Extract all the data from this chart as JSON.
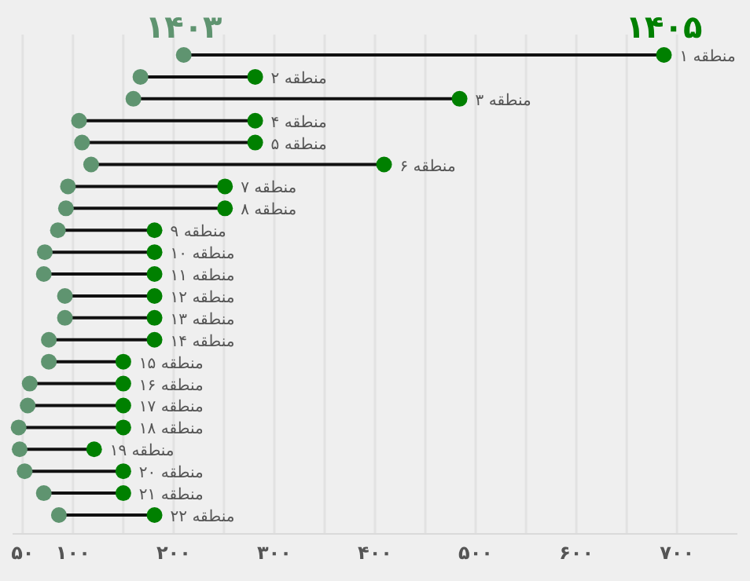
{
  "chart_data": {
    "type": "scatter",
    "orientation": "horizontal",
    "categories": [
      "منطقه ۱",
      "منطقه ۲",
      "منطقه ۳",
      "منطقه ۴",
      "منطقه ۵",
      "منطقه ۶",
      "منطقه ۷",
      "منطقه ۸",
      "منطقه ۹",
      "منطقه ۱۰",
      "منطقه ۱۱",
      "منطقه ۱۲",
      "منطقه ۱۳",
      "منطقه ۱۴",
      "منطقه ۱۵",
      "منطقه ۱۶",
      "منطقه ۱۷",
      "منطقه ۱۸",
      "منطقه ۱۹",
      "منطقه ۲۰",
      "منطقه ۲۱",
      "منطقه ۲۲"
    ],
    "series": [
      {
        "name": "۱۴۰۳",
        "color": "#5f9470",
        "values": [
          210,
          167,
          160,
          106,
          109,
          118,
          95,
          93,
          85,
          72,
          71,
          92,
          92,
          76,
          76,
          57,
          55,
          46,
          47,
          52,
          71,
          86
        ]
      },
      {
        "name": "۱۴۰۵",
        "color": "#008000",
        "values": [
          687,
          281,
          484,
          281,
          281,
          409,
          251,
          251,
          181,
          181,
          181,
          181,
          181,
          181,
          150,
          150,
          150,
          150,
          121,
          150,
          150,
          181
        ]
      }
    ],
    "xlim": [
      40,
      760
    ],
    "xticks": [
      {
        "value": 50,
        "label": "۵۰"
      },
      {
        "value": 100,
        "label": "۱۰۰"
      },
      {
        "value": 150,
        "label": null
      },
      {
        "value": 200,
        "label": "۲۰۰"
      },
      {
        "value": 250,
        "label": null
      },
      {
        "value": 300,
        "label": "۳۰۰"
      },
      {
        "value": 350,
        "label": null
      },
      {
        "value": 400,
        "label": "۴۰۰"
      },
      {
        "value": 450,
        "label": null
      },
      {
        "value": 500,
        "label": "۵۰۰"
      },
      {
        "value": 550,
        "label": null
      },
      {
        "value": 600,
        "label": "۶۰۰"
      },
      {
        "value": 650,
        "label": null
      },
      {
        "value": 700,
        "label": "۷۰۰"
      }
    ],
    "grid": "x",
    "legend": "top",
    "marker": "circle"
  }
}
